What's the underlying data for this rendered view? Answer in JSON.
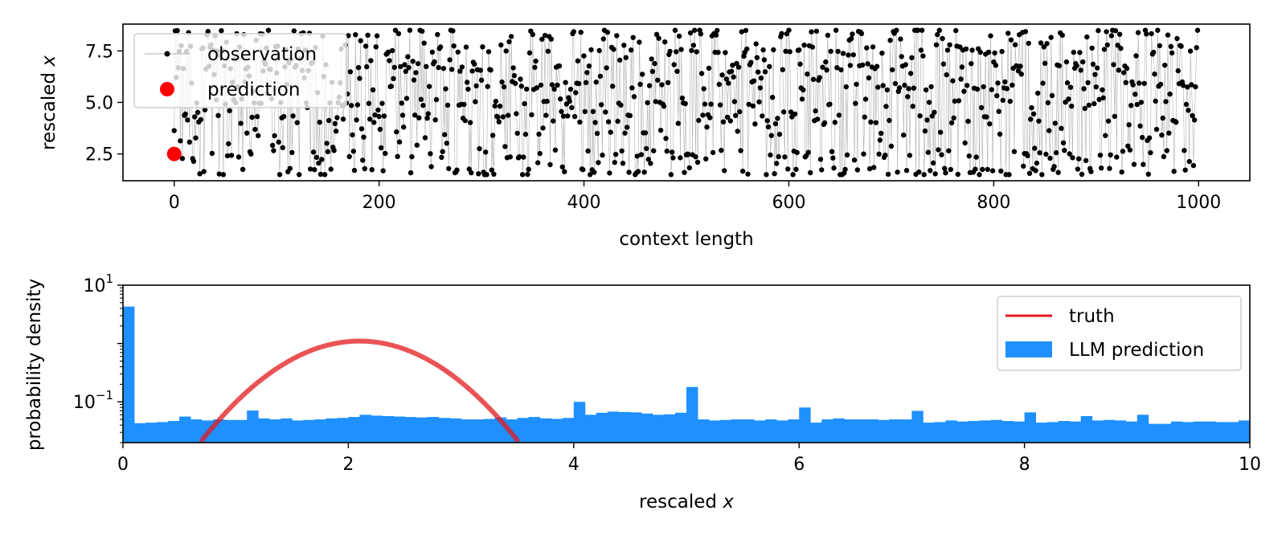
{
  "chart_data": [
    {
      "type": "scatter",
      "xlabel": "context length",
      "ylabel_main": "rescaled ",
      "ylabel_var": "x",
      "xlim": [
        -50,
        1050
      ],
      "ylim": [
        1.2,
        8.8
      ],
      "xticks": [
        0,
        200,
        400,
        600,
        800,
        1000
      ],
      "yticks": [
        2.5,
        5.0,
        7.5
      ],
      "grid": false,
      "legend_position": "upper left",
      "series": [
        {
          "name": "observation",
          "style": "line-with-points",
          "color": "#000000",
          "line_color": "#b0b0b0",
          "n_points": 1000,
          "range": [
            1.5,
            8.5
          ],
          "description_levels": [
            1.6,
            2.5,
            4.2,
            5.0,
            5.8,
            6.7,
            7.6,
            8.4
          ]
        },
        {
          "name": "prediction",
          "style": "point",
          "color": "#ff0000",
          "x": [
            0
          ],
          "y": [
            2.5
          ]
        }
      ]
    },
    {
      "type": "bar",
      "xlabel_main": "rescaled ",
      "xlabel_var": "x",
      "ylabel": "probability density",
      "xlim": [
        0,
        10
      ],
      "ylim_log": [
        0.02,
        10
      ],
      "yscale": "log",
      "xticks": [
        0,
        2,
        4,
        6,
        8,
        10
      ],
      "yticks": [
        {
          "base": "10",
          "exp": "1",
          "value": 10
        },
        {
          "base": "10",
          "exp": "−1",
          "value": 0.1
        }
      ],
      "grid": false,
      "legend_position": "upper right",
      "bin_width": 0.1,
      "series": [
        {
          "name": "truth",
          "type": "line",
          "color": "#e31a1c",
          "peak_x": 2.1,
          "peak_y": 1.1,
          "sigma": 0.5
        },
        {
          "name": "LLM prediction",
          "type": "histogram",
          "color": "#1e90ff",
          "values": [
            4.3,
            0.043,
            0.044,
            0.045,
            0.047,
            0.056,
            0.05,
            0.048,
            0.05,
            0.049,
            0.049,
            0.071,
            0.052,
            0.05,
            0.052,
            0.048,
            0.049,
            0.05,
            0.052,
            0.053,
            0.055,
            0.06,
            0.058,
            0.057,
            0.056,
            0.055,
            0.054,
            0.055,
            0.053,
            0.052,
            0.05,
            0.05,
            0.051,
            0.054,
            0.05,
            0.053,
            0.055,
            0.052,
            0.051,
            0.053,
            0.1,
            0.06,
            0.065,
            0.068,
            0.067,
            0.066,
            0.063,
            0.06,
            0.061,
            0.065,
            0.18,
            0.05,
            0.048,
            0.049,
            0.05,
            0.05,
            0.048,
            0.05,
            0.048,
            0.05,
            0.08,
            0.044,
            0.05,
            0.052,
            0.05,
            0.05,
            0.05,
            0.049,
            0.05,
            0.05,
            0.07,
            0.044,
            0.045,
            0.048,
            0.046,
            0.047,
            0.048,
            0.049,
            0.047,
            0.046,
            0.066,
            0.044,
            0.045,
            0.047,
            0.046,
            0.057,
            0.048,
            0.049,
            0.048,
            0.046,
            0.06,
            0.042,
            0.042,
            0.046,
            0.045,
            0.046,
            0.046,
            0.045,
            0.045,
            0.048
          ]
        }
      ]
    }
  ]
}
